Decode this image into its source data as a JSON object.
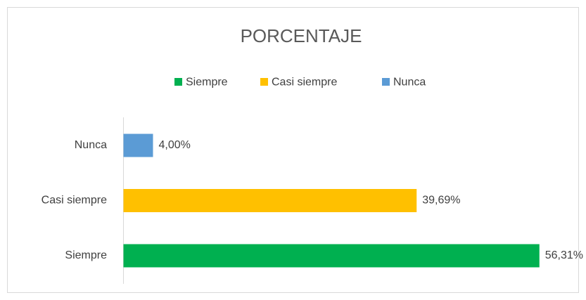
{
  "chart_data": {
    "type": "barh",
    "title": "PORCENTAJE",
    "categories": [
      "Siempre",
      "Casi siempre",
      "Nunca"
    ],
    "values": [
      56.31,
      39.69,
      4.0
    ],
    "value_labels": [
      "56,31%",
      "39,69%",
      "4,00%"
    ],
    "colors": [
      "#00b050",
      "#ffc000",
      "#5b9bd5"
    ],
    "legend": "top"
  }
}
